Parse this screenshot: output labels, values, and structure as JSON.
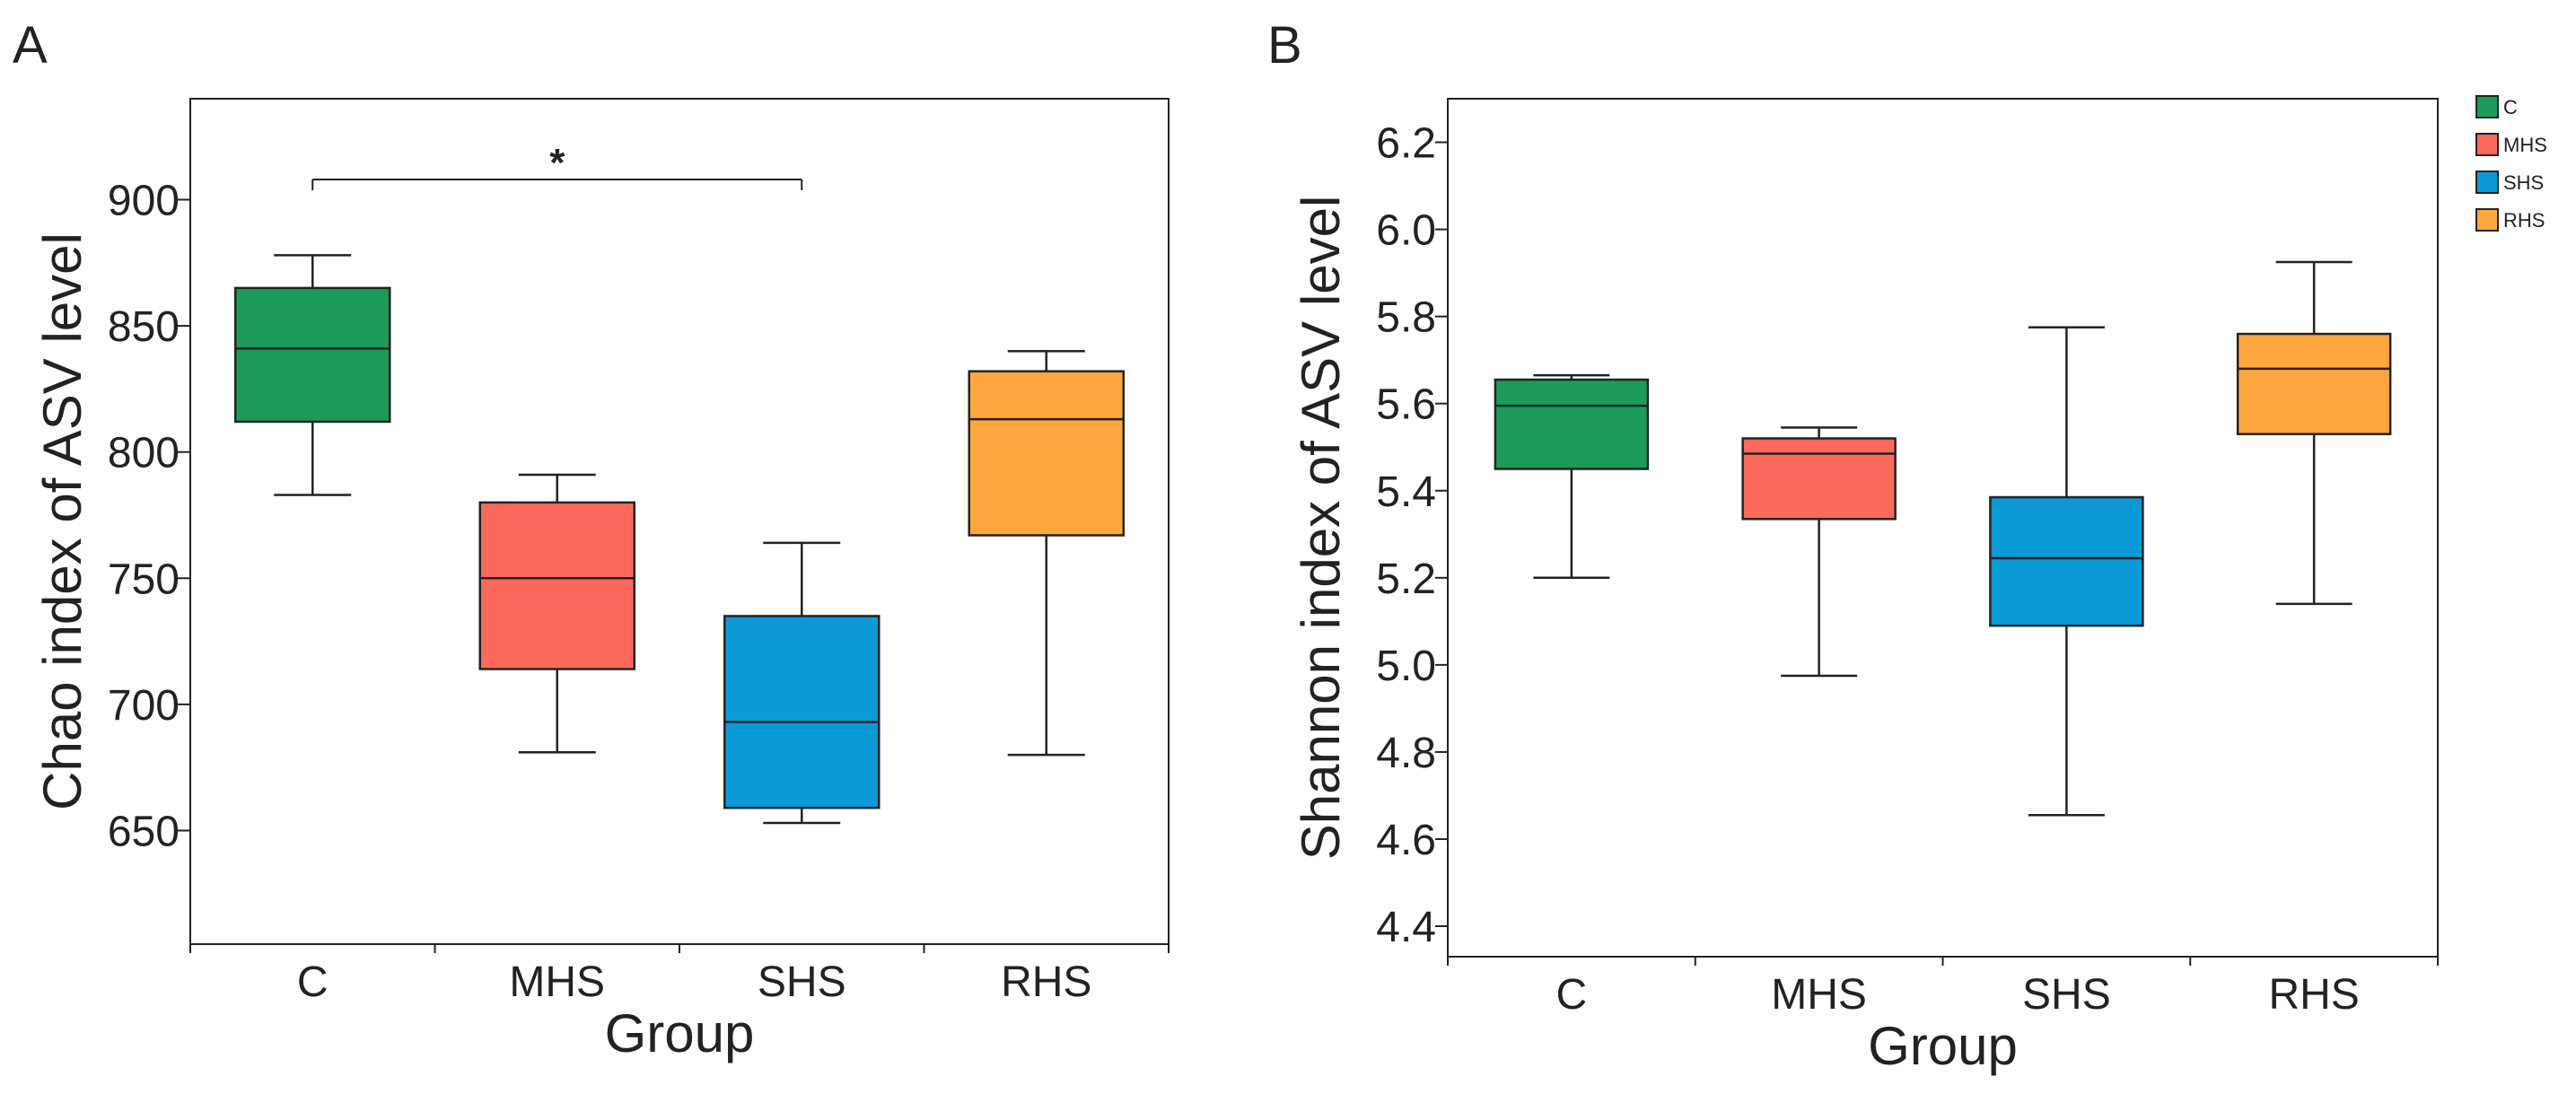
{
  "figure": {
    "panels": [
      "A",
      "B"
    ],
    "legend": {
      "placement": "top-right",
      "entries": [
        {
          "label": "C",
          "color": "#1a9b59"
        },
        {
          "label": "MHS",
          "color": "#fd6a5d"
        },
        {
          "label": "SHS",
          "color": "#0a9ad6"
        },
        {
          "label": "RHS",
          "color": "#fea73f"
        }
      ]
    }
  },
  "chart_data": [
    {
      "panel": "A",
      "type": "box",
      "title": "",
      "xlabel": "Group",
      "ylabel": "Chao index of ASV level",
      "categories": [
        "C",
        "MHS",
        "SHS",
        "RHS"
      ],
      "colors": [
        "#1a9b59",
        "#fd6a5d",
        "#0a9ad6",
        "#fea73f"
      ],
      "ylim": [
        605,
        940
      ],
      "yticks": [
        650,
        700,
        750,
        800,
        850,
        900
      ],
      "ytick_labels": [
        "650",
        "700",
        "750",
        "800",
        "850",
        "900"
      ],
      "boxes": [
        {
          "group": "C",
          "min": 783,
          "q1": 812,
          "median": 841,
          "q3": 865,
          "max": 878
        },
        {
          "group": "MHS",
          "min": 681,
          "q1": 714,
          "median": 750,
          "q3": 780,
          "max": 791
        },
        {
          "group": "SHS",
          "min": 653,
          "q1": 659,
          "median": 693,
          "q3": 735,
          "max": 764
        },
        {
          "group": "RHS",
          "min": 680,
          "q1": 767,
          "median": 813,
          "q3": 832,
          "max": 840
        }
      ],
      "significance": [
        {
          "from": "C",
          "to": "SHS",
          "label": "*",
          "level": 908
        }
      ],
      "grid": false
    },
    {
      "panel": "B",
      "type": "box",
      "title": "",
      "xlabel": "Group",
      "ylabel": "Shannon index of ASV level",
      "categories": [
        "C",
        "MHS",
        "SHS",
        "RHS"
      ],
      "colors": [
        "#1a9b59",
        "#fd6a5d",
        "#0a9ad6",
        "#fea73f"
      ],
      "ylim": [
        4.33,
        6.3
      ],
      "yticks": [
        4.4,
        4.6,
        4.8,
        5.0,
        5.2,
        5.4,
        5.6,
        5.8,
        6.0,
        6.2
      ],
      "ytick_labels": [
        "4.4",
        "4.6",
        "4.8",
        "5.0",
        "5.2",
        "5.4",
        "5.6",
        "5.8",
        "6.0",
        "6.2"
      ],
      "boxes": [
        {
          "group": "C",
          "min": 5.2,
          "q1": 5.45,
          "median": 5.595,
          "q3": 5.655,
          "max": 5.665
        },
        {
          "group": "MHS",
          "min": 4.975,
          "q1": 5.335,
          "median": 5.485,
          "q3": 5.52,
          "max": 5.545
        },
        {
          "group": "SHS",
          "min": 4.655,
          "q1": 5.09,
          "median": 5.245,
          "q3": 5.385,
          "max": 5.775
        },
        {
          "group": "RHS",
          "min": 5.14,
          "q1": 5.53,
          "median": 5.68,
          "q3": 5.76,
          "max": 5.925
        }
      ],
      "significance": [],
      "grid": false
    }
  ]
}
